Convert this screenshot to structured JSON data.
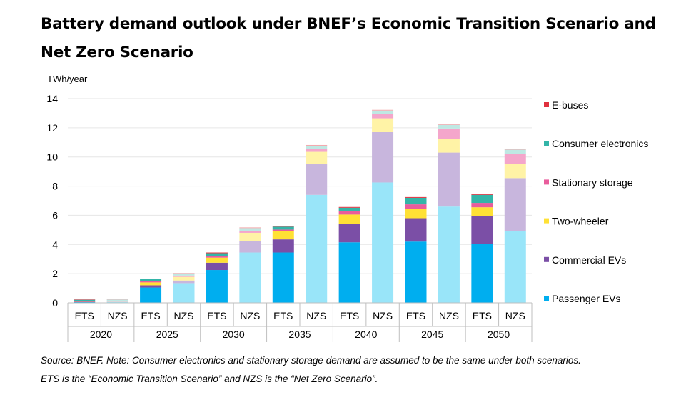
{
  "title": "Battery demand outlook under BNEF’s Economic Transition Scenario and Net Zero Scenario",
  "source_lines": [
    "Source: BNEF. Note: Consumer electronics and stationary storage demand are assumed to be the same under both scenarios.",
    "ETS is the “Economic Transition Scenario” and NZS is the “Net Zero Scenario”."
  ],
  "chart_data": {
    "type": "bar",
    "stacked": true,
    "ylabel": "TWh/year",
    "ylim": [
      0,
      14
    ],
    "yticks": [
      0,
      2,
      4,
      6,
      8,
      10,
      12,
      14
    ],
    "grid": true,
    "legend_position": "right",
    "groups": [
      "2020",
      "2025",
      "2030",
      "2035",
      "2040",
      "2045",
      "2050"
    ],
    "categories": [
      "ETS",
      "NZS",
      "ETS",
      "NZS",
      "ETS",
      "NZS",
      "ETS",
      "NZS",
      "ETS",
      "NZS",
      "ETS",
      "NZS",
      "ETS",
      "NZS"
    ],
    "series": [
      {
        "name": "Passenger EVs",
        "color_ets": "#00AEEF",
        "color_nzs": "#99E5F9",
        "values": [
          0.05,
          0.06,
          1.05,
          1.35,
          2.25,
          3.45,
          3.45,
          7.4,
          4.15,
          8.25,
          4.2,
          6.6,
          4.05,
          4.9
        ]
      },
      {
        "name": "Commercial EVs",
        "color_ets": "#7B4FA6",
        "color_nzs": "#C8B6DD",
        "values": [
          0.02,
          0.03,
          0.15,
          0.18,
          0.5,
          0.8,
          0.9,
          2.1,
          1.25,
          3.45,
          1.6,
          3.7,
          1.9,
          3.65
        ]
      },
      {
        "name": "Two-wheeler",
        "color_ets": "#FFE135",
        "color_nzs": "#FFF3A6",
        "values": [
          0.02,
          0.02,
          0.2,
          0.25,
          0.35,
          0.55,
          0.55,
          0.85,
          0.65,
          0.95,
          0.65,
          0.95,
          0.6,
          0.95
        ]
      },
      {
        "name": "Stationary storage",
        "color_ets": "#E95C9C",
        "color_nzs": "#F4A6CB",
        "values": [
          0.01,
          0.01,
          0.08,
          0.09,
          0.12,
          0.14,
          0.12,
          0.22,
          0.22,
          0.28,
          0.3,
          0.7,
          0.3,
          0.7
        ]
      },
      {
        "name": "Consumer electronics",
        "color_ets": "#33B5A8",
        "color_nzs": "#BFE8E3",
        "values": [
          0.12,
          0.12,
          0.15,
          0.15,
          0.18,
          0.18,
          0.2,
          0.2,
          0.25,
          0.25,
          0.45,
          0.25,
          0.55,
          0.3
        ]
      },
      {
        "name": "E-buses",
        "color_ets": "#E0303D",
        "color_nzs": "#F3A8AD",
        "values": [
          0.01,
          0.01,
          0.03,
          0.03,
          0.05,
          0.05,
          0.05,
          0.05,
          0.05,
          0.05,
          0.05,
          0.05,
          0.05,
          0.05
        ]
      }
    ],
    "legend_order": [
      "E-buses",
      "Consumer electronics",
      "Stationary storage",
      "Two-wheeler",
      "Commercial EVs",
      "Passenger EVs"
    ],
    "gray_color": "#A6A6A6",
    "grid_color": "#E6E6E6",
    "axis_line_color": "#BFBFBF"
  }
}
